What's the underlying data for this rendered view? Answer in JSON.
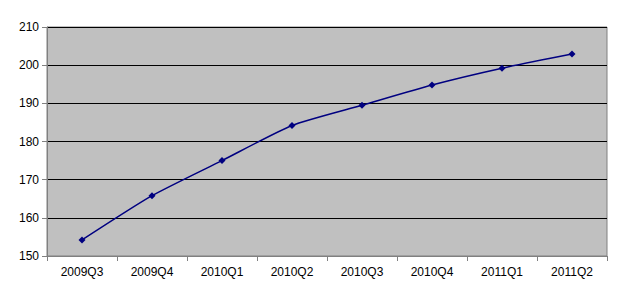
{
  "chart_data": {
    "type": "line",
    "categories": [
      "2009Q3",
      "2009Q4",
      "2010Q1",
      "2010Q2",
      "2010Q3",
      "2010Q4",
      "2011Q1",
      "2011Q2"
    ],
    "values": [
      154.2,
      165.8,
      175,
      184.2,
      189.5,
      194.8,
      199.2,
      202.9
    ],
    "color": "#000080",
    "marker": "diamond",
    "ylim": [
      150,
      210
    ],
    "yticks": [
      150,
      160,
      170,
      180,
      190,
      200,
      210
    ],
    "grid": true
  }
}
